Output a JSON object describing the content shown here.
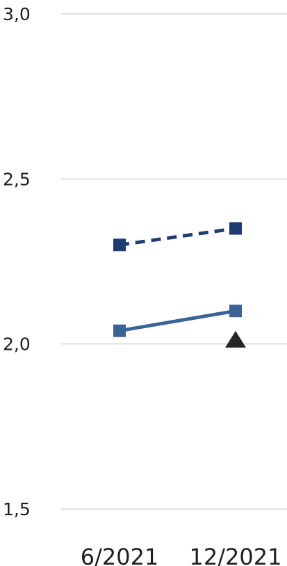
{
  "chart_data": {
    "type": "line",
    "categories": [
      "6/2021",
      "12/2021"
    ],
    "y_ticks": [
      "3,0",
      "2,5",
      "2,0",
      "1,5"
    ],
    "y_tick_values": [
      3.0,
      2.5,
      2.0,
      1.5
    ],
    "ylim": [
      1.5,
      3.0
    ],
    "grid": true,
    "series": [
      {
        "values": [
          2.3,
          2.35
        ],
        "color": "#1f3b73",
        "line_style": "dashed",
        "marker": "square"
      },
      {
        "values": [
          2.04,
          2.1
        ],
        "color": "#3a6499",
        "line_style": "solid",
        "marker": "square"
      },
      {
        "values": [
          null,
          2.01
        ],
        "color": "#262626",
        "line_style": "none",
        "marker": "triangle"
      }
    ]
  }
}
